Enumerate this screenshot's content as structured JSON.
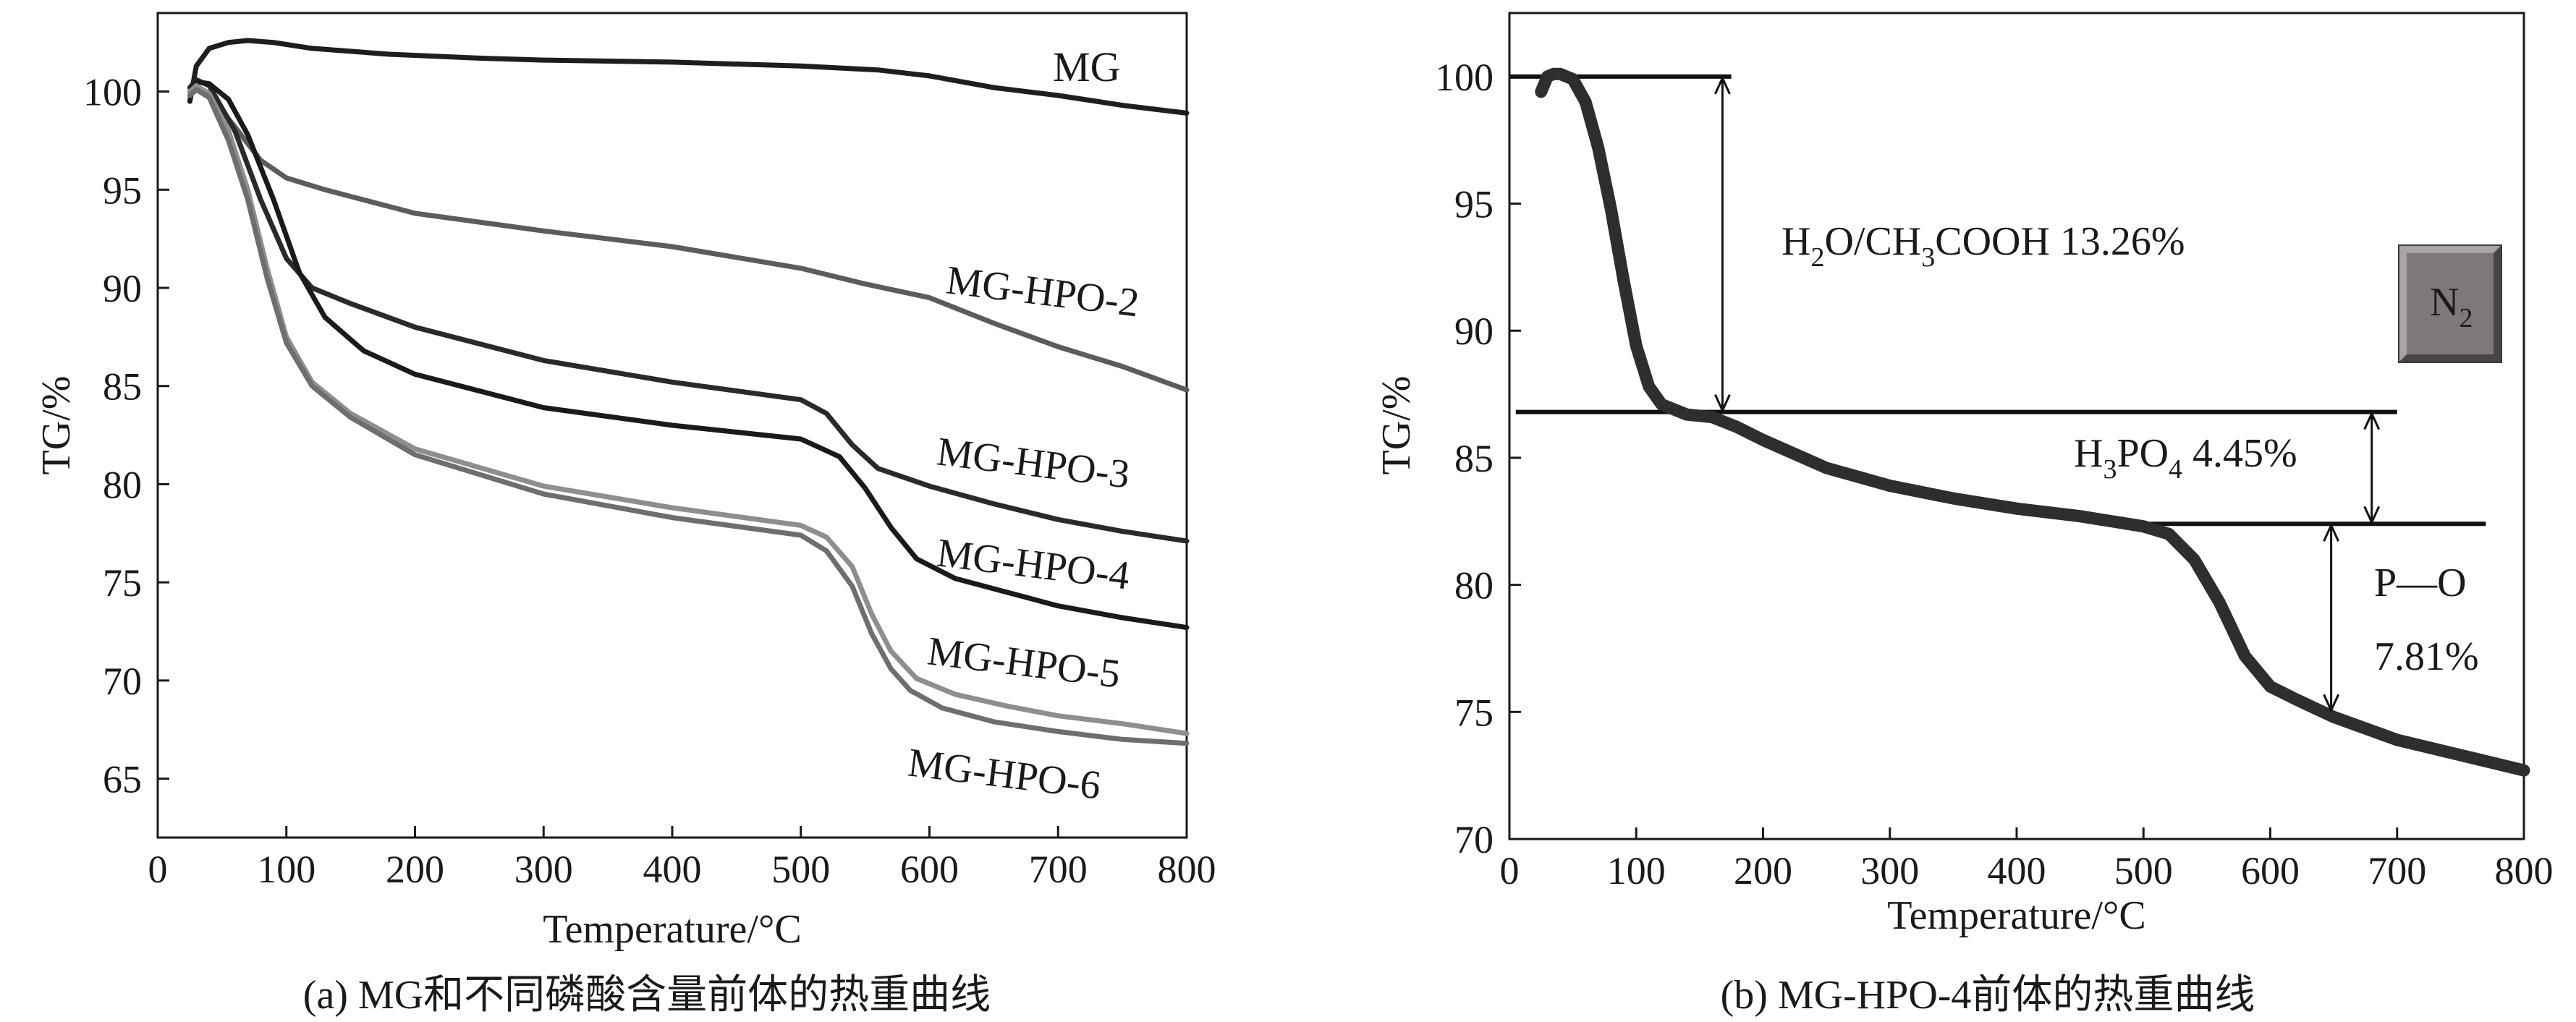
{
  "chart_data": [
    {
      "type": "line",
      "panel": "a",
      "caption": "(a) MG和不同磷酸含量前体的热重曲线",
      "xlabel": "Temperature/°C",
      "ylabel": "TG/%",
      "xlim": [
        0,
        800
      ],
      "ylim": [
        62,
        104
      ],
      "xticks": [
        0,
        100,
        200,
        300,
        400,
        500,
        600,
        700,
        800
      ],
      "yticks": [
        65,
        70,
        75,
        80,
        85,
        90,
        95,
        100
      ],
      "grid": false,
      "series": [
        {
          "name": "MG",
          "color": "#1e1e1e",
          "x": [
            25,
            30,
            40,
            55,
            70,
            90,
            120,
            180,
            250,
            300,
            400,
            500,
            560,
            600,
            650,
            700,
            750,
            800
          ],
          "y": [
            99.5,
            101.3,
            102.2,
            102.5,
            102.6,
            102.5,
            102.2,
            101.9,
            101.7,
            101.6,
            101.5,
            101.3,
            101.1,
            100.8,
            100.2,
            99.8,
            99.3,
            98.9
          ]
        },
        {
          "name": "MG-HPO-2",
          "color": "#5c5c5c",
          "x": [
            25,
            30,
            40,
            60,
            80,
            100,
            130,
            200,
            300,
            400,
            500,
            550,
            600,
            650,
            700,
            750,
            800
          ],
          "y": [
            100.0,
            100.1,
            99.8,
            98.2,
            96.5,
            95.6,
            95.0,
            93.8,
            92.9,
            92.1,
            91.0,
            90.2,
            89.5,
            88.2,
            87.0,
            86.0,
            84.8
          ]
        },
        {
          "name": "MG-HPO-3",
          "color": "#2a2a2a",
          "x": [
            25,
            30,
            40,
            60,
            80,
            100,
            120,
            150,
            200,
            300,
            400,
            500,
            520,
            540,
            560,
            600,
            650,
            700,
            750,
            800
          ],
          "y": [
            100.2,
            100.6,
            100.3,
            98.0,
            94.5,
            91.5,
            90.0,
            89.2,
            88.0,
            86.3,
            85.2,
            84.3,
            83.6,
            82.0,
            80.8,
            79.9,
            79.0,
            78.2,
            77.6,
            77.1
          ]
        },
        {
          "name": "MG-HPO-4",
          "color": "#1a1a1a",
          "x": [
            25,
            30,
            40,
            55,
            70,
            90,
            110,
            130,
            160,
            200,
            300,
            400,
            500,
            530,
            550,
            570,
            590,
            620,
            660,
            700,
            750,
            800
          ],
          "y": [
            100.0,
            100.5,
            100.4,
            99.6,
            97.8,
            94.5,
            90.8,
            88.5,
            86.8,
            85.6,
            83.9,
            83.0,
            82.3,
            81.4,
            79.8,
            77.8,
            76.2,
            75.2,
            74.5,
            73.8,
            73.2,
            72.7
          ]
        },
        {
          "name": "MG-HPO-5",
          "color": "#8e8e8e",
          "x": [
            25,
            30,
            40,
            55,
            70,
            85,
            100,
            120,
            150,
            200,
            300,
            400,
            500,
            520,
            540,
            555,
            570,
            590,
            620,
            660,
            700,
            750,
            800
          ],
          "y": [
            100.0,
            100.3,
            99.9,
            98.0,
            95.0,
            91.0,
            87.5,
            85.2,
            83.6,
            81.8,
            79.9,
            78.8,
            77.9,
            77.3,
            75.8,
            73.4,
            71.5,
            70.1,
            69.3,
            68.7,
            68.2,
            67.8,
            67.3
          ]
        },
        {
          "name": "MG-HPO-6",
          "color": "#6e6e6e",
          "x": [
            25,
            30,
            40,
            55,
            70,
            85,
            100,
            120,
            150,
            200,
            300,
            400,
            500,
            520,
            540,
            555,
            570,
            585,
            610,
            650,
            700,
            750,
            800
          ],
          "y": [
            99.8,
            100.1,
            99.7,
            97.5,
            94.5,
            90.5,
            87.2,
            85.0,
            83.4,
            81.5,
            79.5,
            78.3,
            77.4,
            76.6,
            74.8,
            72.4,
            70.6,
            69.5,
            68.6,
            67.9,
            67.4,
            67.0,
            66.8
          ]
        }
      ],
      "annotations": [
        "MG",
        "MG-HPO-2",
        "MG-HPO-3",
        "MG-HPO-4",
        "MG-HPO-5",
        "MG-HPO-6"
      ]
    },
    {
      "type": "line",
      "panel": "b",
      "caption": "(b) MG-HPO-4前体的热重曲线",
      "xlabel": "Temperature/°C",
      "ylabel": "TG/%",
      "xlim": [
        0,
        800
      ],
      "ylim": [
        70,
        102.5
      ],
      "xticks": [
        0,
        100,
        200,
        300,
        400,
        500,
        600,
        700,
        800
      ],
      "yticks": [
        70,
        75,
        80,
        85,
        90,
        95,
        100
      ],
      "grid": false,
      "series": [
        {
          "name": "MG-HPO-4",
          "color": "#2e2e2e",
          "x": [
            25,
            30,
            35,
            40,
            50,
            60,
            70,
            80,
            90,
            100,
            110,
            120,
            140,
            160,
            180,
            200,
            250,
            300,
            350,
            400,
            450,
            500,
            520,
            540,
            560,
            580,
            600,
            620,
            650,
            700,
            750,
            800
          ],
          "y": [
            99.4,
            100.0,
            100.1,
            100.1,
            99.9,
            99.0,
            97.2,
            94.8,
            92.0,
            89.4,
            87.8,
            87.1,
            86.7,
            86.6,
            86.2,
            85.7,
            84.6,
            83.9,
            83.4,
            83.0,
            82.7,
            82.3,
            82.0,
            81.0,
            79.3,
            77.2,
            76.0,
            75.5,
            74.8,
            73.9,
            73.3,
            72.7
          ]
        }
      ],
      "reference_lines": [
        {
          "y": 100.0,
          "x0": 0,
          "x1": 175
        },
        {
          "y": 86.8,
          "x0": 5,
          "x1": 700
        },
        {
          "y": 82.4,
          "x0": 505,
          "x1": 770
        }
      ],
      "arrows": [
        {
          "x": 168,
          "y_top": 100.0,
          "y_bottom": 86.8
        },
        {
          "x": 680,
          "y_top": 86.8,
          "y_bottom": 82.4
        },
        {
          "x": 648,
          "y_top": 82.4,
          "y_bottom": 75.0
        }
      ],
      "labels": {
        "h2o": "H2O/CH3COOH 13.26%",
        "h3po4": "H3PO4 4.45%",
        "po_name": "P—O",
        "po_value": "7.81%",
        "atmosphere": "N2"
      },
      "label_parts": {
        "h2o": [
          "H",
          "2",
          "O/CH",
          "3",
          "COOH 13.26%"
        ],
        "h3po4": [
          "H",
          "3",
          "PO",
          "4",
          " 4.45%"
        ],
        "atmosphere": [
          "N",
          "2"
        ]
      }
    }
  ]
}
